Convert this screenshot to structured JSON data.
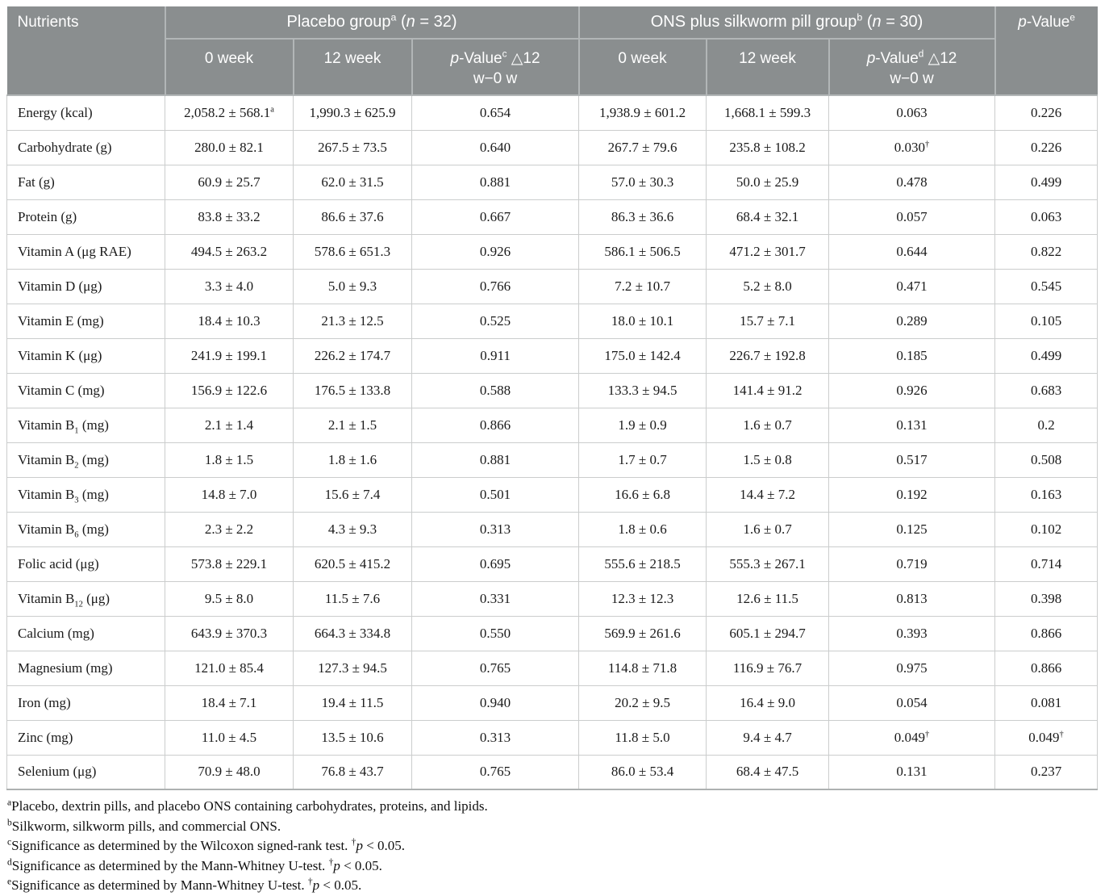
{
  "colors": {
    "header_bg": "#8a8e8f",
    "header_text": "#ffffff",
    "header_divider": "#b2b6b7",
    "body_border": "#cbcdcd",
    "body_text": "#1a1a1a",
    "table_bottom_border": "#adb1b1"
  },
  "table": {
    "header": {
      "nutrients": "Nutrients",
      "groups": [
        {
          "label": "Placebo group",
          "sup": "a",
          "open": " (",
          "n": "n",
          "count": " = 32)"
        },
        {
          "label": "ONS plus silkworm pill group",
          "sup": "b",
          "open": " (",
          "n": "n",
          "count": " = 30)"
        }
      ],
      "pvalue_overall": {
        "p": "p",
        "label": "-Value",
        "sup": "e"
      },
      "subcols": [
        {
          "label": "0 week"
        },
        {
          "label": "12 week"
        },
        {
          "p": "p",
          "label": "-Value",
          "sup": "c",
          "delta": " △12",
          "line2": "w−0 w"
        },
        {
          "label": "0 week"
        },
        {
          "label": "12 week"
        },
        {
          "p": "p",
          "label": "-Value",
          "sup": "d",
          "delta": " △12",
          "line2": "w−0 w"
        }
      ]
    },
    "rows": [
      {
        "label": "Energy (kcal)",
        "cells": [
          {
            "v": "2,058.2 ± 568.1",
            "sup": "a"
          },
          {
            "v": "1,990.3 ± 625.9"
          },
          {
            "v": "0.654"
          },
          {
            "v": "1,938.9 ± 601.2"
          },
          {
            "v": "1,668.1 ± 599.3"
          },
          {
            "v": "0.063"
          },
          {
            "v": "0.226"
          }
        ]
      },
      {
        "label": "Carbohydrate (g)",
        "cells": [
          {
            "v": "280.0 ± 82.1"
          },
          {
            "v": "267.5 ± 73.5"
          },
          {
            "v": "0.640"
          },
          {
            "v": "267.7 ± 79.6"
          },
          {
            "v": "235.8 ± 108.2"
          },
          {
            "v": "0.030",
            "sup": "†"
          },
          {
            "v": "0.226"
          }
        ]
      },
      {
        "label": "Fat (g)",
        "cells": [
          {
            "v": "60.9 ± 25.7"
          },
          {
            "v": "62.0 ± 31.5"
          },
          {
            "v": "0.881"
          },
          {
            "v": "57.0 ± 30.3"
          },
          {
            "v": "50.0 ± 25.9"
          },
          {
            "v": "0.478"
          },
          {
            "v": "0.499"
          }
        ]
      },
      {
        "label": "Protein (g)",
        "cells": [
          {
            "v": "83.8 ± 33.2"
          },
          {
            "v": "86.6 ± 37.6"
          },
          {
            "v": "0.667"
          },
          {
            "v": "86.3 ± 36.6"
          },
          {
            "v": "68.4 ± 32.1"
          },
          {
            "v": "0.057"
          },
          {
            "v": "0.063"
          }
        ]
      },
      {
        "label": "Vitamin A (μg RAE)",
        "cells": [
          {
            "v": "494.5 ± 263.2"
          },
          {
            "v": "578.6 ± 651.3"
          },
          {
            "v": "0.926"
          },
          {
            "v": "586.1 ± 506.5"
          },
          {
            "v": "471.2 ± 301.7"
          },
          {
            "v": "0.644"
          },
          {
            "v": "0.822"
          }
        ]
      },
      {
        "label": "Vitamin D (μg)",
        "cells": [
          {
            "v": "3.3 ± 4.0"
          },
          {
            "v": "5.0 ± 9.3"
          },
          {
            "v": "0.766"
          },
          {
            "v": "7.2 ± 10.7"
          },
          {
            "v": "5.2 ± 8.0"
          },
          {
            "v": "0.471"
          },
          {
            "v": "0.545"
          }
        ]
      },
      {
        "label": "Vitamin E (mg)",
        "cells": [
          {
            "v": "18.4 ± 10.3"
          },
          {
            "v": "21.3 ± 12.5"
          },
          {
            "v": "0.525"
          },
          {
            "v": "18.0 ± 10.1"
          },
          {
            "v": "15.7 ± 7.1"
          },
          {
            "v": "0.289"
          },
          {
            "v": "0.105"
          }
        ]
      },
      {
        "label": "Vitamin K (μg)",
        "cells": [
          {
            "v": "241.9 ± 199.1"
          },
          {
            "v": "226.2 ± 174.7"
          },
          {
            "v": "0.911"
          },
          {
            "v": "175.0 ± 142.4"
          },
          {
            "v": "226.7 ± 192.8"
          },
          {
            "v": "0.185"
          },
          {
            "v": "0.499"
          }
        ]
      },
      {
        "label": "Vitamin C (mg)",
        "cells": [
          {
            "v": "156.9 ± 122.6"
          },
          {
            "v": "176.5 ± 133.8"
          },
          {
            "v": "0.588"
          },
          {
            "v": "133.3 ± 94.5"
          },
          {
            "v": "141.4 ± 91.2"
          },
          {
            "v": "0.926"
          },
          {
            "v": "0.683"
          }
        ]
      },
      {
        "label": "Vitamin B",
        "sub": "1",
        "after": " (mg)",
        "cells": [
          {
            "v": "2.1 ± 1.4"
          },
          {
            "v": "2.1 ± 1.5"
          },
          {
            "v": "0.866"
          },
          {
            "v": "1.9 ± 0.9"
          },
          {
            "v": "1.6 ± 0.7"
          },
          {
            "v": "0.131"
          },
          {
            "v": "0.2"
          }
        ]
      },
      {
        "label": "Vitamin B",
        "sub": "2",
        "after": " (mg)",
        "cells": [
          {
            "v": "1.8 ± 1.5"
          },
          {
            "v": "1.8 ± 1.6"
          },
          {
            "v": "0.881"
          },
          {
            "v": "1.7 ± 0.7"
          },
          {
            "v": "1.5 ± 0.8"
          },
          {
            "v": "0.517"
          },
          {
            "v": "0.508"
          }
        ]
      },
      {
        "label": "Vitamin B",
        "sub": "3",
        "after": " (mg)",
        "cells": [
          {
            "v": "14.8 ± 7.0"
          },
          {
            "v": "15.6 ± 7.4"
          },
          {
            "v": "0.501"
          },
          {
            "v": "16.6 ± 6.8"
          },
          {
            "v": "14.4 ± 7.2"
          },
          {
            "v": "0.192"
          },
          {
            "v": "0.163"
          }
        ]
      },
      {
        "label": "Vitamin B",
        "sub": "6",
        "after": " (mg)",
        "cells": [
          {
            "v": "2.3 ± 2.2"
          },
          {
            "v": "4.3 ± 9.3"
          },
          {
            "v": "0.313"
          },
          {
            "v": "1.8 ± 0.6"
          },
          {
            "v": "1.6 ± 0.7"
          },
          {
            "v": "0.125"
          },
          {
            "v": "0.102"
          }
        ]
      },
      {
        "label": "Folic acid (μg)",
        "cells": [
          {
            "v": "573.8 ± 229.1"
          },
          {
            "v": "620.5 ± 415.2"
          },
          {
            "v": "0.695"
          },
          {
            "v": "555.6 ± 218.5"
          },
          {
            "v": "555.3 ± 267.1"
          },
          {
            "v": "0.719"
          },
          {
            "v": "0.714"
          }
        ]
      },
      {
        "label": "Vitamin B",
        "sub": "12",
        "after": " (μg)",
        "cells": [
          {
            "v": "9.5 ± 8.0"
          },
          {
            "v": "11.5 ± 7.6"
          },
          {
            "v": "0.331"
          },
          {
            "v": "12.3 ± 12.3"
          },
          {
            "v": "12.6 ± 11.5"
          },
          {
            "v": "0.813"
          },
          {
            "v": "0.398"
          }
        ]
      },
      {
        "label": "Calcium (mg)",
        "cells": [
          {
            "v": "643.9 ± 370.3"
          },
          {
            "v": "664.3 ± 334.8"
          },
          {
            "v": "0.550"
          },
          {
            "v": "569.9 ± 261.6"
          },
          {
            "v": "605.1 ± 294.7"
          },
          {
            "v": "0.393"
          },
          {
            "v": "0.866"
          }
        ]
      },
      {
        "label": "Magnesium (mg)",
        "cells": [
          {
            "v": "121.0 ± 85.4"
          },
          {
            "v": "127.3 ± 94.5"
          },
          {
            "v": "0.765"
          },
          {
            "v": "114.8 ± 71.8"
          },
          {
            "v": "116.9 ± 76.7"
          },
          {
            "v": "0.975"
          },
          {
            "v": "0.866"
          }
        ]
      },
      {
        "label": "Iron (mg)",
        "cells": [
          {
            "v": "18.4 ± 7.1"
          },
          {
            "v": "19.4 ± 11.5"
          },
          {
            "v": "0.940"
          },
          {
            "v": "20.2 ± 9.5"
          },
          {
            "v": "16.4 ± 9.0"
          },
          {
            "v": "0.054"
          },
          {
            "v": "0.081"
          }
        ]
      },
      {
        "label": "Zinc (mg)",
        "cells": [
          {
            "v": "11.0 ± 4.5"
          },
          {
            "v": "13.5 ± 10.6"
          },
          {
            "v": "0.313"
          },
          {
            "v": "11.8 ± 5.0"
          },
          {
            "v": "9.4 ± 4.7"
          },
          {
            "v": "0.049",
            "sup": "†"
          },
          {
            "v": "0.049",
            "sup": "†"
          }
        ]
      },
      {
        "label": "Selenium (μg)",
        "cells": [
          {
            "v": "70.9 ± 48.0"
          },
          {
            "v": "76.8 ± 43.7"
          },
          {
            "v": "0.765"
          },
          {
            "v": "86.0 ± 53.4"
          },
          {
            "v": "68.4 ± 47.5"
          },
          {
            "v": "0.131"
          },
          {
            "v": "0.237"
          }
        ]
      }
    ]
  },
  "footnotes": [
    {
      "sup": "a",
      "text": "Placebo, dextrin pills, and placebo ONS containing carbohydrates, proteins, and lipids."
    },
    {
      "sup": "b",
      "text": "Silkworm, silkworm pills, and commercial ONS."
    },
    {
      "sup": "c",
      "text": "Significance as determined by the Wilcoxon signed-rank test. ",
      "dagger": "†",
      "p": "p",
      "tail": " < 0.05."
    },
    {
      "sup": "d",
      "text": "Significance as determined by the Mann-Whitney U-test. ",
      "dagger": "†",
      "p": "p",
      "tail": " < 0.05."
    },
    {
      "sup": "e",
      "text": "Significance as determined by Mann-Whitney U-test. ",
      "dagger": "†",
      "p": "p",
      "tail": " < 0.05."
    }
  ]
}
